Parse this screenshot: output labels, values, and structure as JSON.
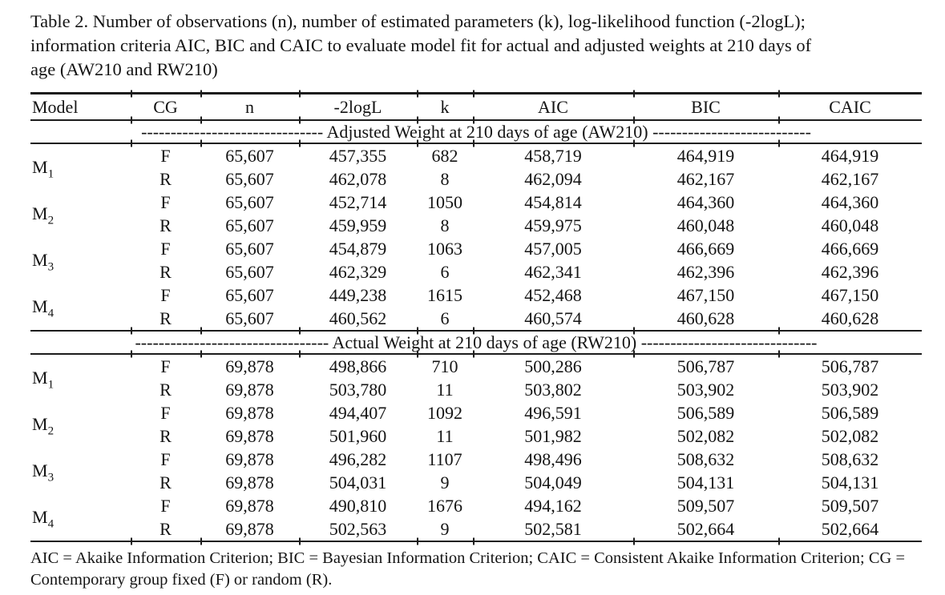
{
  "page": {
    "background_color": "#ffffff",
    "text_color": "#141414"
  },
  "caption": {
    "lines": [
      "Table 2. Number of observations (n), number of estimated parameters (k), log-likelihood function (-2logL);",
      "information criteria AIC, BIC and CAIC to evaluate model fit for actual and adjusted weights at 210 days of",
      "age (AW210 and RW210)"
    ]
  },
  "table": {
    "columns": [
      "Model",
      "CG",
      "n",
      "-2logL",
      "k",
      "AIC",
      "BIC",
      "CAIC"
    ],
    "sections": [
      {
        "title": "Adjusted Weight at 210 days of age (AW210)",
        "dashes_left": "-------------------------------",
        "dashes_right": "---------------------------",
        "groups": [
          {
            "model": "M",
            "sub": "1",
            "rows": [
              [
                "F",
                "65,607",
                "457,355",
                "682",
                "458,719",
                "464,919",
                "464,919"
              ],
              [
                "R",
                "65,607",
                "462,078",
                "8",
                "462,094",
                "462,167",
                "462,167"
              ]
            ]
          },
          {
            "model": "M",
            "sub": "2",
            "rows": [
              [
                "F",
                "65,607",
                "452,714",
                "1050",
                "454,814",
                "464,360",
                "464,360"
              ],
              [
                "R",
                "65,607",
                "459,959",
                "8",
                "459,975",
                "460,048",
                "460,048"
              ]
            ]
          },
          {
            "model": "M",
            "sub": "3",
            "rows": [
              [
                "F",
                "65,607",
                "454,879",
                "1063",
                "457,005",
                "466,669",
                "466,669"
              ],
              [
                "R",
                "65,607",
                "462,329",
                "6",
                "462,341",
                "462,396",
                "462,396"
              ]
            ]
          },
          {
            "model": "M",
            "sub": "4",
            "rows": [
              [
                "F",
                "65,607",
                "449,238",
                "1615",
                "452,468",
                "467,150",
                "467,150"
              ],
              [
                "R",
                "65,607",
                "460,562",
                "6",
                "460,574",
                "460,628",
                "460,628"
              ]
            ]
          }
        ]
      },
      {
        "title": "Actual Weight at 210 days of age (RW210)",
        "dashes_left": "---------------------------------",
        "dashes_right": "------------------------------",
        "groups": [
          {
            "model": "M",
            "sub": "1",
            "rows": [
              [
                "F",
                "69,878",
                "498,866",
                "710",
                "500,286",
                "506,787",
                "506,787"
              ],
              [
                "R",
                "69,878",
                "503,780",
                "11",
                "503,802",
                "503,902",
                "503,902"
              ]
            ]
          },
          {
            "model": "M",
            "sub": "2",
            "rows": [
              [
                "F",
                "69,878",
                "494,407",
                "1092",
                "496,591",
                "506,589",
                "506,589"
              ],
              [
                "R",
                "69,878",
                "501,960",
                "11",
                "501,982",
                "502,082",
                "502,082"
              ]
            ]
          },
          {
            "model": "M",
            "sub": "3",
            "rows": [
              [
                "F",
                "69,878",
                "496,282",
                "1107",
                "498,496",
                "508,632",
                "508,632"
              ],
              [
                "R",
                "69,878",
                "504,031",
                "9",
                "504,049",
                "504,131",
                "504,131"
              ]
            ]
          },
          {
            "model": "M",
            "sub": "4",
            "rows": [
              [
                "F",
                "69,878",
                "490,810",
                "1676",
                "494,162",
                "509,507",
                "509,507"
              ],
              [
                "R",
                "69,878",
                "502,563",
                "9",
                "502,581",
                "502,664",
                "502,664"
              ]
            ]
          }
        ]
      }
    ]
  },
  "footnote": {
    "lines": [
      "AIC = Akaike Information Criterion; BIC = Bayesian Information Criterion; CAIC = Consistent Akaike Information Criterion; CG =",
      "Contemporary group fixed (F) or random (R)."
    ]
  }
}
